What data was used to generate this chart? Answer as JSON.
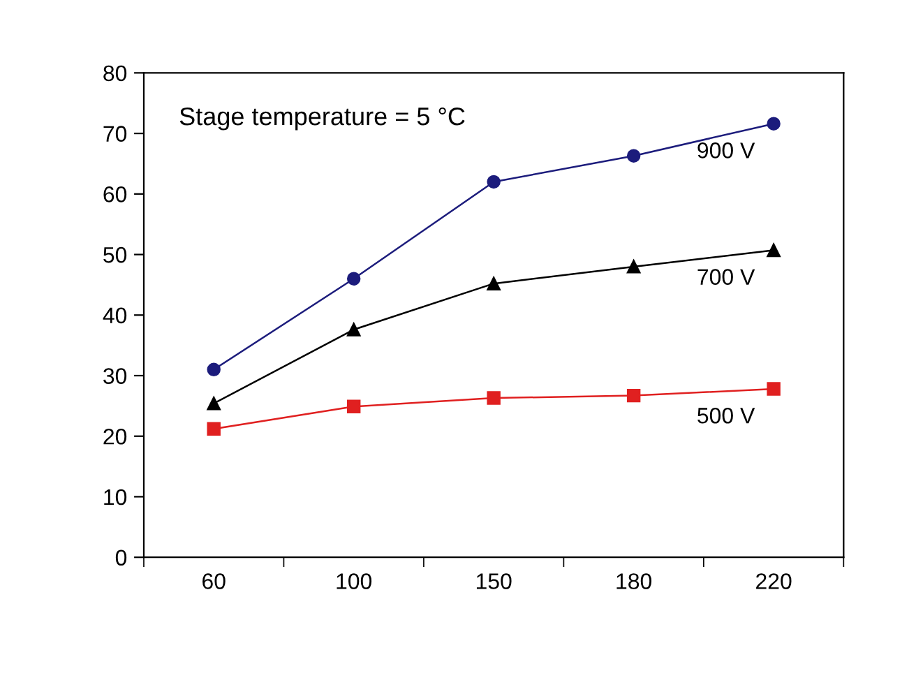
{
  "chart_data": {
    "type": "line",
    "categories": [
      "60",
      "100",
      "150",
      "180",
      "220"
    ],
    "ylim": [
      0,
      80
    ],
    "yticks": [
      0,
      10,
      20,
      30,
      40,
      50,
      60,
      70,
      80
    ],
    "grid": false,
    "legend": false,
    "annotations": [
      "Stage temperature = 5 °C"
    ],
    "series": [
      {
        "name": "900 V",
        "color": "#1c1c7c",
        "marker": "circle",
        "values": [
          31,
          46,
          62,
          66.3,
          71.6
        ]
      },
      {
        "name": "700 V",
        "color": "#000000",
        "marker": "triangle",
        "values": [
          25.4,
          37.6,
          45.2,
          48,
          50.7
        ]
      },
      {
        "name": "500 V",
        "color": "#e02020",
        "marker": "square",
        "values": [
          21.2,
          24.9,
          26.3,
          26.7,
          27.8
        ]
      }
    ]
  }
}
